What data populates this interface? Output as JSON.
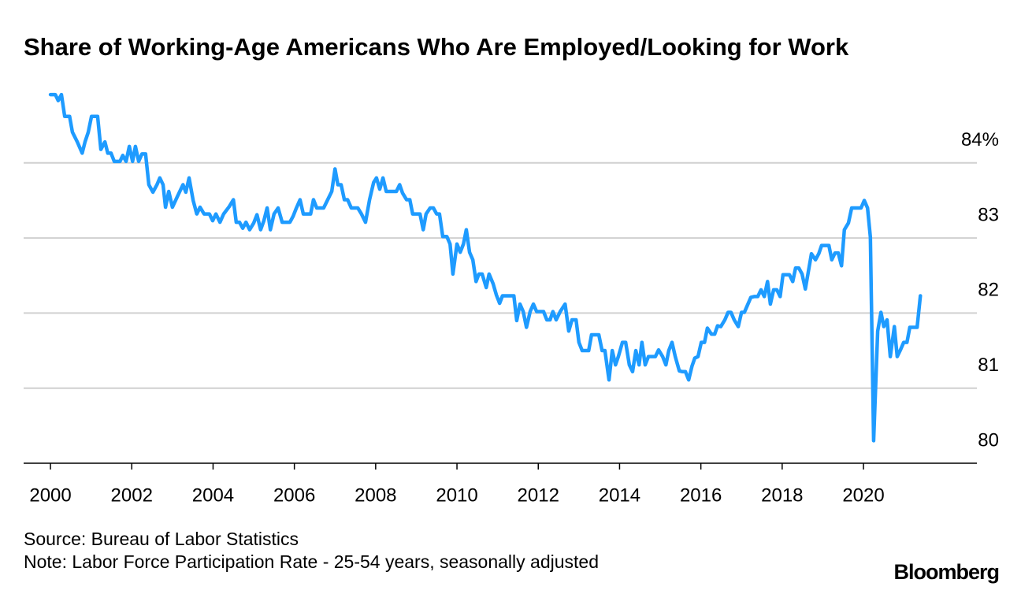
{
  "chart_data": {
    "type": "line",
    "title": "Share of Working-Age Americans Who Are Employed/Looking for Work",
    "source": "Source: Bureau of Labor Statistics",
    "note": "Note: Labor Force Participation Rate - 25-54 years, seasonally adjusted",
    "brand": "Bloomberg",
    "color": "#1e9bff",
    "grid": true,
    "xlim": [
      1999.34,
      2022.79
    ],
    "xticks": [
      2000,
      2002,
      2004,
      2006,
      2008,
      2010,
      2012,
      2014,
      2016,
      2018,
      2020
    ],
    "ylim": [
      80,
      85
    ],
    "yticks": [
      80,
      81,
      82,
      83,
      {
        "value": 84,
        "label": "84%"
      }
    ],
    "x": [
      2000.0,
      2000.12,
      2000.19,
      2000.27,
      2000.35,
      2000.47,
      2000.54,
      2000.66,
      2000.78,
      2000.85,
      2000.93,
      2001.01,
      2001.16,
      2001.24,
      2001.34,
      2001.41,
      2001.49,
      2001.57,
      2001.71,
      2001.78,
      2001.86,
      2001.94,
      2002.02,
      2002.09,
      2002.17,
      2002.25,
      2002.34,
      2002.42,
      2002.52,
      2002.62,
      2002.69,
      2002.77,
      2002.83,
      2002.91,
      2003.0,
      2003.12,
      2003.26,
      2003.33,
      2003.41,
      2003.51,
      2003.6,
      2003.68,
      2003.78,
      2003.91,
      2003.99,
      2004.07,
      2004.17,
      2004.26,
      2004.4,
      2004.5,
      2004.57,
      2004.65,
      2004.73,
      2004.81,
      2004.9,
      2005.0,
      2005.08,
      2005.17,
      2005.25,
      2005.33,
      2005.41,
      2005.5,
      2005.6,
      2005.7,
      2005.81,
      2005.89,
      2005.97,
      2006.05,
      2006.14,
      2006.22,
      2006.4,
      2006.47,
      2006.55,
      2006.72,
      2006.82,
      2006.92,
      2007.0,
      2007.07,
      2007.15,
      2007.23,
      2007.31,
      2007.4,
      2007.56,
      2007.65,
      2007.75,
      2007.85,
      2007.95,
      2008.02,
      2008.1,
      2008.18,
      2008.26,
      2008.43,
      2008.51,
      2008.59,
      2008.66,
      2008.76,
      2008.84,
      2008.91,
      2008.99,
      2009.09,
      2009.17,
      2009.24,
      2009.34,
      2009.42,
      2009.5,
      2009.57,
      2009.65,
      2009.75,
      2009.83,
      2009.9,
      2010.0,
      2010.08,
      2010.16,
      2010.23,
      2010.31,
      2010.39,
      2010.47,
      2010.54,
      2010.62,
      2010.72,
      2010.79,
      2010.89,
      2010.97,
      2011.05,
      2011.12,
      2011.22,
      2011.32,
      2011.4,
      2011.47,
      2011.55,
      2011.63,
      2011.71,
      2011.8,
      2011.88,
      2011.96,
      2012.05,
      2012.13,
      2012.21,
      2012.29,
      2012.36,
      2012.44,
      2012.54,
      2012.66,
      2012.75,
      2012.83,
      2012.93,
      2013.0,
      2013.08,
      2013.16,
      2013.24,
      2013.31,
      2013.49,
      2013.57,
      2013.64,
      2013.74,
      2013.82,
      2013.9,
      2013.97,
      2014.07,
      2014.15,
      2014.24,
      2014.32,
      2014.4,
      2014.48,
      2014.55,
      2014.63,
      2014.71,
      2014.81,
      2014.88,
      2014.96,
      2015.06,
      2015.14,
      2015.21,
      2015.29,
      2015.37,
      2015.47,
      2015.54,
      2015.62,
      2015.7,
      2015.78,
      2015.85,
      2015.93,
      2016.01,
      2016.09,
      2016.16,
      2016.26,
      2016.34,
      2016.41,
      2016.49,
      2016.59,
      2016.67,
      2016.74,
      2016.82,
      2016.92,
      2017.0,
      2017.07,
      2017.15,
      2017.23,
      2017.31,
      2017.4,
      2017.48,
      2017.56,
      2017.64,
      2017.71,
      2017.79,
      2017.87,
      2017.95,
      2018.02,
      2018.18,
      2018.26,
      2018.33,
      2018.41,
      2018.49,
      2018.57,
      2018.72,
      2018.82,
      2018.9,
      2018.97,
      2019.15,
      2019.22,
      2019.3,
      2019.38,
      2019.46,
      2019.53,
      2019.63,
      2019.71,
      2019.86,
      2019.94,
      2020.02,
      2020.1,
      2020.17,
      2020.25,
      2020.35,
      2020.43,
      2020.5,
      2020.58,
      2020.66,
      2020.76,
      2020.83,
      2020.91,
      2020.99,
      2021.07,
      2021.14,
      2021.24,
      2021.32,
      2021.4
    ],
    "values": [
      84.91,
      84.91,
      84.83,
      84.91,
      84.62,
      84.62,
      84.41,
      84.28,
      84.13,
      84.28,
      84.41,
      84.62,
      84.62,
      84.18,
      84.28,
      84.13,
      84.13,
      84.02,
      84.02,
      84.1,
      84.02,
      84.22,
      84.02,
      84.22,
      84.02,
      84.12,
      84.12,
      83.71,
      83.61,
      83.71,
      83.8,
      83.71,
      83.41,
      83.62,
      83.41,
      83.55,
      83.71,
      83.61,
      83.8,
      83.5,
      83.32,
      83.41,
      83.32,
      83.32,
      83.23,
      83.32,
      83.21,
      83.32,
      83.42,
      83.51,
      83.21,
      83.21,
      83.13,
      83.21,
      83.11,
      83.2,
      83.31,
      83.11,
      83.23,
      83.4,
      83.11,
      83.32,
      83.4,
      83.21,
      83.21,
      83.21,
      83.29,
      83.4,
      83.51,
      83.32,
      83.32,
      83.51,
      83.4,
      83.4,
      83.51,
      83.62,
      83.92,
      83.71,
      83.71,
      83.51,
      83.51,
      83.4,
      83.4,
      83.32,
      83.21,
      83.51,
      83.74,
      83.8,
      83.65,
      83.8,
      83.62,
      83.62,
      83.62,
      83.71,
      83.6,
      83.51,
      83.51,
      83.32,
      83.32,
      83.32,
      83.11,
      83.32,
      83.4,
      83.4,
      83.32,
      83.32,
      83.02,
      83.02,
      82.92,
      82.52,
      82.92,
      82.81,
      82.92,
      83.11,
      82.81,
      82.71,
      82.42,
      82.52,
      82.52,
      82.34,
      82.52,
      82.39,
      82.24,
      82.13,
      82.23,
      82.23,
      82.23,
      82.23,
      81.9,
      82.12,
      82.02,
      81.81,
      82.02,
      82.12,
      82.02,
      82.02,
      82.02,
      81.91,
      81.91,
      82.02,
      81.91,
      82.02,
      82.12,
      81.76,
      81.91,
      81.91,
      81.61,
      81.5,
      81.5,
      81.5,
      81.71,
      81.71,
      81.5,
      81.5,
      81.11,
      81.5,
      81.31,
      81.42,
      81.61,
      81.61,
      81.31,
      81.22,
      81.5,
      81.31,
      81.61,
      81.31,
      81.42,
      81.42,
      81.42,
      81.51,
      81.42,
      81.31,
      81.5,
      81.61,
      81.42,
      81.23,
      81.22,
      81.22,
      81.11,
      81.29,
      81.4,
      81.42,
      81.61,
      81.61,
      81.8,
      81.72,
      81.72,
      81.83,
      81.82,
      81.91,
      82.01,
      82.01,
      81.91,
      81.82,
      82.01,
      82.01,
      82.11,
      82.21,
      82.22,
      82.22,
      82.31,
      82.22,
      82.42,
      82.12,
      82.31,
      82.31,
      82.22,
      82.51,
      82.51,
      82.42,
      82.6,
      82.6,
      82.52,
      82.32,
      82.79,
      82.71,
      82.79,
      82.9,
      82.9,
      82.71,
      82.8,
      82.8,
      82.63,
      83.11,
      83.2,
      83.4,
      83.4,
      83.4,
      83.5,
      83.4,
      83.01,
      80.3,
      81.76,
      82.01,
      81.82,
      81.91,
      81.42,
      81.82,
      81.42,
      81.51,
      81.61,
      81.61,
      81.81,
      81.81,
      81.81,
      82.23
    ]
  }
}
